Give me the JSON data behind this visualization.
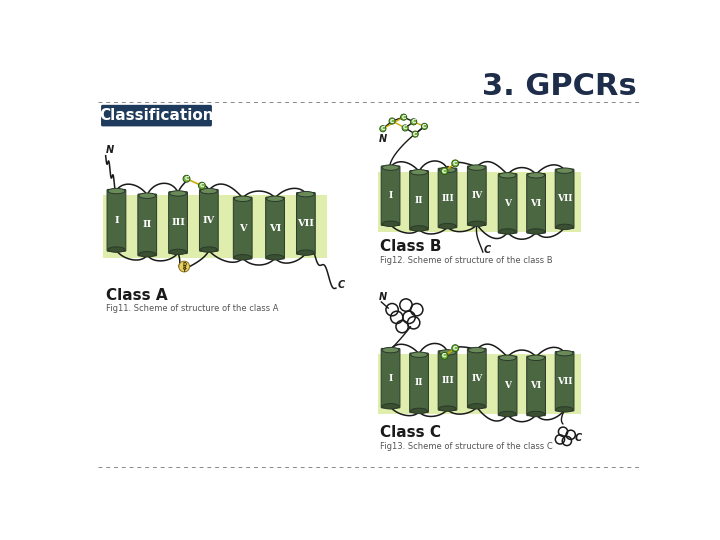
{
  "title": "3. GPCRs",
  "title_color": "#1e2d4a",
  "title_fontsize": 22,
  "classification_label": "Classification",
  "classification_bg": "#1e3a5c",
  "classification_fg": "#ffffff",
  "background_color": "#ffffff",
  "helix_dark_green": "#4a6741",
  "helix_mid_green": "#6a8a5a",
  "helix_bot_green": "#3a5030",
  "membrane_color": "#d4e88a",
  "loop_color": "#1a1a1a",
  "cys_circle_color": "#7ab648",
  "cys_bond_color": "#ccaa00",
  "dashed_line_color": "#888888",
  "roman_numerals": [
    "I",
    "II",
    "III",
    "IV",
    "V",
    "VI",
    "VII"
  ],
  "class_a_label": "Class A",
  "class_b_label": "Class B",
  "class_c_label": "Class C",
  "fig11_caption": "Fig11. Scheme of structure of the class A",
  "fig12_caption": "Fig12. Scheme of structure of the class B",
  "fig13_caption": "Fig13. Scheme of structure of the class C",
  "fig_caption_color": "#555555"
}
